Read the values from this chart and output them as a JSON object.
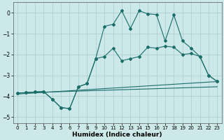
{
  "xlabel": "Humidex (Indice chaleur)",
  "xlim": [
    -0.5,
    23.5
  ],
  "ylim": [
    -5.3,
    0.5
  ],
  "xticks": [
    0,
    1,
    2,
    3,
    4,
    5,
    6,
    7,
    8,
    9,
    10,
    11,
    12,
    13,
    14,
    15,
    16,
    17,
    18,
    19,
    20,
    21,
    22,
    23
  ],
  "yticks": [
    0,
    -1,
    -2,
    -3,
    -4,
    -5
  ],
  "bg_color": "#cce8e8",
  "grid_color": "#aacccc",
  "line_color": "#1a6e6a",
  "line1_x": [
    0,
    23
  ],
  "line1_y": [
    -3.9,
    -3.3
  ],
  "line2_x": [
    0,
    23
  ],
  "line2_y": [
    -3.85,
    -3.55
  ],
  "line3_x": [
    0,
    1,
    2,
    3,
    4,
    5,
    6,
    7,
    8,
    9,
    10,
    11,
    12,
    13,
    14,
    15,
    16,
    17,
    18,
    19,
    20,
    21,
    22,
    23
  ],
  "line3_y": [
    -3.85,
    -3.83,
    -3.8,
    -3.78,
    -4.15,
    -4.55,
    -4.6,
    -3.55,
    -3.4,
    -2.2,
    -2.1,
    -1.7,
    -2.3,
    -2.2,
    -2.1,
    -1.65,
    -1.7,
    -1.6,
    -1.65,
    -2.0,
    -1.95,
    -2.1,
    -3.0,
    -3.3
  ],
  "line4_x": [
    0,
    1,
    2,
    3,
    4,
    5,
    6,
    7,
    8,
    9,
    10,
    11,
    12,
    13,
    14,
    15,
    16,
    17,
    18,
    19,
    20,
    21,
    22,
    23
  ],
  "line4_y": [
    -3.85,
    -3.83,
    -3.8,
    -3.78,
    -4.15,
    -4.55,
    -4.6,
    -3.55,
    -3.4,
    -2.2,
    -0.65,
    -0.55,
    0.1,
    -0.75,
    0.1,
    -0.05,
    -0.08,
    -1.35,
    -0.1,
    -1.35,
    -1.7,
    -2.1,
    -3.0,
    -3.3
  ]
}
